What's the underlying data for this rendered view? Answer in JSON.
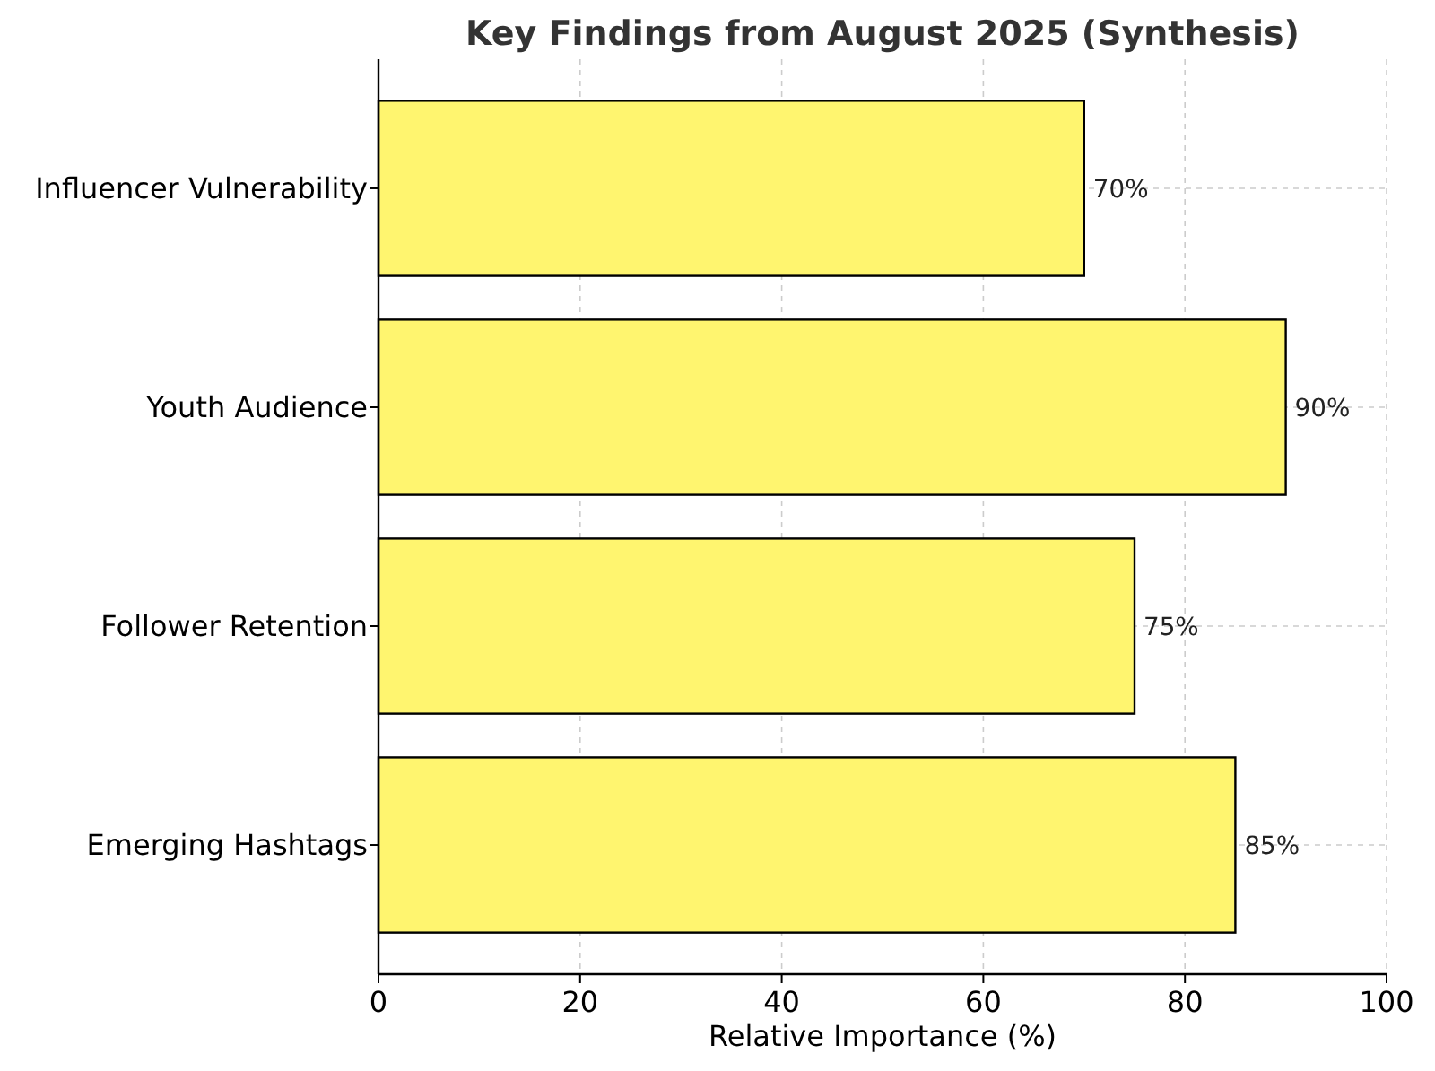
{
  "chart_data": {
    "type": "bar",
    "orientation": "horizontal",
    "title": "Key Findings from August 2025 (Synthesis)",
    "xlabel": "Relative Importance (%)",
    "categories": [
      "Influencer Vulnerability",
      "Youth Audience",
      "Follower Retention",
      "Emerging Hashtags"
    ],
    "values": [
      70,
      90,
      75,
      85
    ],
    "value_labels": [
      "70%",
      "90%",
      "75%",
      "85%"
    ],
    "color": "#fff56f",
    "xlim": [
      0,
      100
    ],
    "xticks": [
      0,
      20,
      40,
      60,
      80,
      100
    ],
    "grid": true
  }
}
